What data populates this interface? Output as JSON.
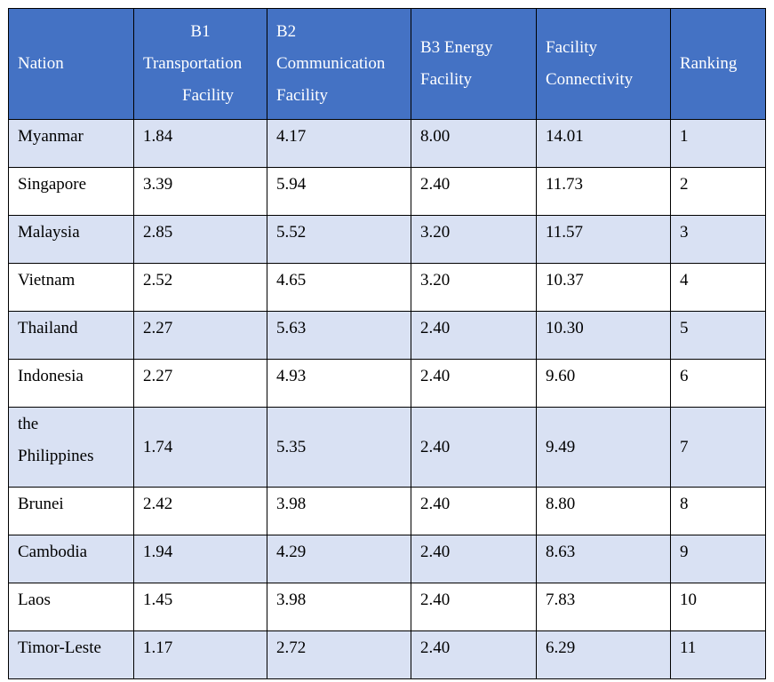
{
  "table": {
    "headers": [
      {
        "key": "nation",
        "lines": [
          "Nation"
        ]
      },
      {
        "key": "b1",
        "lines": [
          "B1",
          "Transportation",
          "Facility"
        ]
      },
      {
        "key": "b2",
        "lines": [
          "B2",
          "Communication",
          "Facility"
        ]
      },
      {
        "key": "b3",
        "lines": [
          "B3 Energy",
          "Facility"
        ]
      },
      {
        "key": "fc",
        "lines": [
          "Facility",
          "Connectivity"
        ]
      },
      {
        "key": "rank",
        "lines": [
          "Ranking"
        ]
      }
    ],
    "rows": [
      {
        "nation": "Myanmar",
        "b1": "1.84",
        "b2": "4.17",
        "b3": "8.00",
        "fc": "14.01",
        "rank": "1"
      },
      {
        "nation": "Singapore",
        "b1": "3.39",
        "b2": "5.94",
        "b3": "2.40",
        "fc": "11.73",
        "rank": "2"
      },
      {
        "nation": "Malaysia",
        "b1": "2.85",
        "b2": "5.52",
        "b3": "3.20",
        "fc": "11.57",
        "rank": "3"
      },
      {
        "nation": "Vietnam",
        "b1": "2.52",
        "b2": "4.65",
        "b3": "3.20",
        "fc": "10.37",
        "rank": "4"
      },
      {
        "nation": "Thailand",
        "b1": "2.27",
        "b2": "5.63",
        "b3": "2.40",
        "fc": "10.30",
        "rank": "5"
      },
      {
        "nation": "Indonesia",
        "b1": "2.27",
        "b2": "4.93",
        "b3": "2.40",
        "fc": "9.60",
        "rank": "6"
      },
      {
        "nation_lines": [
          "the",
          "Philippines"
        ],
        "b1": "1.74",
        "b2": "5.35",
        "b3": "2.40",
        "fc": "9.49",
        "rank": "7"
      },
      {
        "nation": "Brunei",
        "b1": "2.42",
        "b2": "3.98",
        "b3": "2.40",
        "fc": "8.80",
        "rank": "8"
      },
      {
        "nation": "Cambodia",
        "b1": "1.94",
        "b2": "4.29",
        "b3": "2.40",
        "fc": "8.63",
        "rank": "9"
      },
      {
        "nation": "Laos",
        "b1": "1.45",
        "b2": "3.98",
        "b3": "2.40",
        "fc": "7.83",
        "rank": "10"
      },
      {
        "nation": "Timor-Leste",
        "b1": "1.17",
        "b2": "2.72",
        "b3": "2.40",
        "fc": "6.29",
        "rank": "11"
      }
    ]
  },
  "colors": {
    "header_bg": "#4472c4",
    "header_text": "#ffffff",
    "row_shade": "#d9e1f3",
    "row_plain": "#ffffff",
    "border": "#000000"
  }
}
